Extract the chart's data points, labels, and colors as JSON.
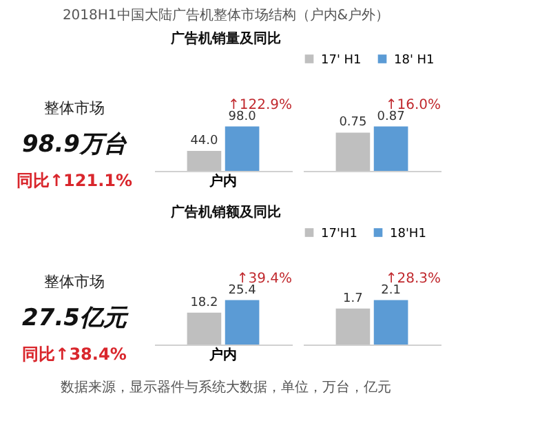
{
  "chart_data": [
    {
      "type": "other",
      "title": "2018H1中国大陆广告机整体市场结构（户内&户外）",
      "subtitle": "广告机销量及同比",
      "annotations": [
        "整体市场",
        "98.9万台",
        "同比↑121.1%"
      ]
    },
    {
      "type": "bar",
      "categories": [
        "户内"
      ],
      "series": [
        {
          "color": "#bfbfbf",
          "values": [
            44.0
          ],
          "value_labels": [
            "44.0"
          ]
        },
        {
          "color": "#5b9bd5",
          "values": [
            98.0
          ],
          "value_labels": [
            "98.0"
          ]
        }
      ],
      "annotations": [
        "↑122.9%"
      ]
    },
    {
      "type": "bar",
      "categories": [
        null
      ],
      "legend": "top",
      "series": [
        {
          "name": "17' H1",
          "color": "#bfbfbf",
          "values": [
            0.75
          ],
          "value_labels": [
            "0.75"
          ]
        },
        {
          "name": "18' H1",
          "color": "#5b9bd5",
          "values": [
            0.87
          ],
          "value_labels": [
            "0.87"
          ]
        }
      ],
      "annotations": [
        "↑16.0%"
      ]
    },
    {
      "type": "other",
      "subtitle": "广告机销额及同比",
      "annotations": [
        "整体市场",
        "27.5亿元",
        "同比↑38.4%"
      ]
    },
    {
      "type": "bar",
      "categories": [
        "户内"
      ],
      "series": [
        {
          "color": "#bfbfbf",
          "values": [
            18.2
          ],
          "value_labels": [
            "18.2"
          ]
        },
        {
          "color": "#5b9bd5",
          "values": [
            25.4
          ],
          "value_labels": [
            "25.4"
          ]
        }
      ],
      "annotations": [
        "↑39.4%"
      ]
    },
    {
      "type": "bar",
      "categories": [
        null
      ],
      "legend": "top",
      "series": [
        {
          "name": "17'H1",
          "color": "#bfbfbf",
          "values": [
            1.7
          ],
          "value_labels": [
            "1.7"
          ]
        },
        {
          "name": "18'H1",
          "color": "#5b9bd5",
          "values": [
            2.1
          ],
          "value_labels": [
            "2.1"
          ]
        }
      ],
      "annotations": [
        "↑28.3%"
      ]
    },
    {
      "type": "other",
      "annotations": [
        "数据来源，显示器件与系统大数据，单位，万台，亿元"
      ]
    }
  ]
}
